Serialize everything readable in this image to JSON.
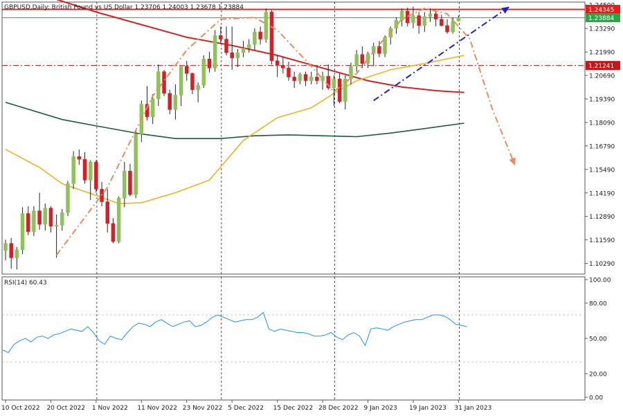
{
  "chart_data": [
    {
      "type": "candlestick",
      "symbol": "GBPUSD",
      "timeframe": "Daily",
      "description": "British Pound vs US Dollar",
      "ohlc_readout": "1.23706 1.24003 1.23678 1.23884",
      "price_axis_ticks": [
        "1.24590",
        "1.23290",
        "1.21990",
        "1.20690",
        "1.19390",
        "1.18090",
        "1.16790",
        "1.15490",
        "1.14190",
        "1.12890",
        "1.11590",
        "1.10290"
      ],
      "horizontal_levels": [
        {
          "price": 1.24345,
          "label": "1.24345",
          "color": "#e81a1a",
          "style": "solid"
        },
        {
          "price": 1.23884,
          "label": "1.23884",
          "color": "#27a844",
          "style": "solid"
        },
        {
          "price": 1.21241,
          "label": "1.21241",
          "color": "#cc1414",
          "style": "dash-dot"
        }
      ],
      "date_labels": [
        {
          "index": 0,
          "label": "10 Oct 2022"
        },
        {
          "index": 8,
          "label": "20 Oct 2022"
        },
        {
          "index": 16,
          "label": "1 Nov 2022"
        },
        {
          "index": 24,
          "label": "11 Nov 2022"
        },
        {
          "index": 32,
          "label": "23 Nov 2022"
        },
        {
          "index": 40,
          "label": "5 Dec 2022"
        },
        {
          "index": 48,
          "label": "15 Dec 2022"
        },
        {
          "index": 56,
          "label": "28 Dec 2022"
        },
        {
          "index": 64,
          "label": "9 Jan 2023"
        },
        {
          "index": 72,
          "label": "19 Jan 2023"
        },
        {
          "index": 80,
          "label": "31 Jan 2023"
        }
      ],
      "vertical_separator_indices": [
        16,
        38,
        58,
        80
      ],
      "colors": {
        "bull": "#8fc35a",
        "bear": "#d61f26",
        "ma_fast": "#f2b21b",
        "ma_mid": "#d62222",
        "ma_slow": "#1d5a3c"
      },
      "candles": [
        [
          1.11,
          1.116,
          1.1045,
          1.114
        ],
        [
          1.114,
          1.117,
          1.1,
          1.106
        ],
        [
          1.106,
          1.112,
          1.0995,
          1.1105
        ],
        [
          1.1105,
          1.134,
          1.108,
          1.1305
        ],
        [
          1.1305,
          1.1345,
          1.1185,
          1.1205
        ],
        [
          1.1205,
          1.1345,
          1.118,
          1.132
        ],
        [
          1.132,
          1.142,
          1.1215,
          1.1245
        ],
        [
          1.1245,
          1.136,
          1.121,
          1.1335
        ],
        [
          1.1335,
          1.1345,
          1.12,
          1.1235
        ],
        [
          1.1235,
          1.13,
          1.106,
          1.124
        ],
        [
          1.124,
          1.133,
          1.121,
          1.131
        ],
        [
          1.131,
          1.1485,
          1.129,
          1.147
        ],
        [
          1.147,
          1.165,
          1.144,
          1.162
        ],
        [
          1.162,
          1.166,
          1.1575,
          1.1605
        ],
        [
          1.1605,
          1.1645,
          1.147,
          1.149
        ],
        [
          1.149,
          1.16,
          1.138,
          1.159
        ],
        [
          1.159,
          1.16,
          1.142,
          1.144
        ],
        [
          1.144,
          1.148,
          1.1345,
          1.137
        ],
        [
          1.137,
          1.144,
          1.12,
          1.125
        ],
        [
          1.125,
          1.128,
          1.114,
          1.115
        ],
        [
          1.115,
          1.14,
          1.114,
          1.139
        ],
        [
          1.139,
          1.159,
          1.134,
          1.154
        ],
        [
          1.154,
          1.158,
          1.14,
          1.141
        ],
        [
          1.141,
          1.177,
          1.139,
          1.1745
        ],
        [
          1.1745,
          1.193,
          1.17,
          1.191
        ],
        [
          1.191,
          1.201,
          1.182,
          1.184
        ],
        [
          1.184,
          1.1965,
          1.18,
          1.194
        ],
        [
          1.194,
          1.213,
          1.19,
          1.209
        ],
        [
          1.209,
          1.21,
          1.1955,
          1.197
        ],
        [
          1.197,
          1.199,
          1.1855,
          1.188
        ],
        [
          1.188,
          1.202,
          1.1825,
          1.196
        ],
        [
          1.196,
          1.212,
          1.19,
          1.212
        ],
        [
          1.212,
          1.215,
          1.204,
          1.208
        ],
        [
          1.208,
          1.2085,
          1.1965,
          1.199
        ],
        [
          1.199,
          1.203,
          1.192,
          1.2015
        ],
        [
          1.2015,
          1.218,
          1.2,
          1.216
        ],
        [
          1.216,
          1.22,
          1.2085,
          1.211
        ],
        [
          1.211,
          1.232,
          1.209,
          1.229
        ],
        [
          1.229,
          1.234,
          1.2245,
          1.227
        ],
        [
          1.227,
          1.234,
          1.218,
          1.2195
        ],
        [
          1.2195,
          1.234,
          1.21,
          1.2165
        ],
        [
          1.2165,
          1.2215,
          1.2115,
          1.2195
        ],
        [
          1.2195,
          1.226,
          1.217,
          1.222
        ],
        [
          1.222,
          1.227,
          1.2195,
          1.224
        ],
        [
          1.224,
          1.233,
          1.221,
          1.231
        ],
        [
          1.231,
          1.234,
          1.224,
          1.227
        ],
        [
          1.227,
          1.244,
          1.225,
          1.242
        ],
        [
          1.242,
          1.243,
          1.213,
          1.215
        ],
        [
          1.215,
          1.218,
          1.206,
          1.2125
        ],
        [
          1.2125,
          1.217,
          1.208,
          1.211
        ],
        [
          1.211,
          1.2145,
          1.204,
          1.206
        ],
        [
          1.206,
          1.209,
          1.2,
          1.204
        ],
        [
          1.204,
          1.2085,
          1.202,
          1.2075
        ],
        [
          1.2075,
          1.209,
          1.201,
          1.204
        ],
        [
          1.204,
          1.209,
          1.202,
          1.206
        ],
        [
          1.206,
          1.212,
          1.202,
          1.204
        ],
        [
          1.204,
          1.209,
          1.199,
          1.2065
        ],
        [
          1.2065,
          1.213,
          1.199,
          1.2
        ],
        [
          1.2,
          1.207,
          1.19,
          1.205
        ],
        [
          1.205,
          1.208,
          1.1915,
          1.1925
        ],
        [
          1.1925,
          1.207,
          1.188,
          1.205
        ],
        [
          1.205,
          1.214,
          1.202,
          1.212
        ],
        [
          1.212,
          1.221,
          1.209,
          1.2185
        ],
        [
          1.2185,
          1.223,
          1.211,
          1.2135
        ],
        [
          1.2135,
          1.22,
          1.211,
          1.219
        ],
        [
          1.219,
          1.225,
          1.212,
          1.223
        ],
        [
          1.223,
          1.226,
          1.217,
          1.219
        ],
        [
          1.219,
          1.229,
          1.217,
          1.228
        ],
        [
          1.228,
          1.234,
          1.224,
          1.233
        ],
        [
          1.233,
          1.239,
          1.23,
          1.2375
        ],
        [
          1.2375,
          1.244,
          1.234,
          1.2425
        ],
        [
          1.2425,
          1.2445,
          1.234,
          1.236
        ],
        [
          1.236,
          1.245,
          1.233,
          1.24
        ],
        [
          1.24,
          1.242,
          1.23,
          1.2345
        ],
        [
          1.2345,
          1.242,
          1.231,
          1.2395
        ],
        [
          1.2395,
          1.244,
          1.2365,
          1.241
        ],
        [
          1.241,
          1.243,
          1.234,
          1.238
        ],
        [
          1.238,
          1.2405,
          1.234,
          1.2345
        ],
        [
          1.2345,
          1.238,
          1.23,
          1.231
        ],
        [
          1.231,
          1.239,
          1.23,
          1.237
        ],
        [
          1.237,
          1.24,
          1.2368,
          1.2388
        ]
      ],
      "moving_averages": [
        {
          "key": "ma_slow",
          "points": [
            [
              0,
              1.192
            ],
            [
              10,
              1.1825
            ],
            [
              16,
              1.179
            ],
            [
              24,
              1.1745
            ],
            [
              30,
              1.172
            ],
            [
              38,
              1.172
            ],
            [
              44,
              1.1735
            ],
            [
              50,
              1.174
            ],
            [
              56,
              1.1735
            ],
            [
              62,
              1.173
            ],
            [
              68,
              1.175
            ],
            [
              74,
              1.1775
            ],
            [
              81,
              1.1805
            ]
          ]
        },
        {
          "key": "ma_mid",
          "points": [
            [
              0,
              1.258
            ],
            [
              8,
              1.25
            ],
            [
              16,
              1.242
            ],
            [
              24,
              1.235
            ],
            [
              32,
              1.228
            ],
            [
              40,
              1.2235
            ],
            [
              48,
              1.218
            ],
            [
              56,
              1.211
            ],
            [
              64,
              1.204
            ],
            [
              70,
              1.2005
            ],
            [
              76,
              1.1985
            ],
            [
              81,
              1.1975
            ]
          ]
        },
        {
          "key": "ma_fast",
          "points": [
            [
              0,
              1.166
            ],
            [
              6,
              1.156
            ],
            [
              10,
              1.147
            ],
            [
              16,
              1.1405
            ],
            [
              20,
              1.136
            ],
            [
              24,
              1.1365
            ],
            [
              30,
              1.142
            ],
            [
              36,
              1.149
            ],
            [
              42,
              1.171
            ],
            [
              48,
              1.1835
            ],
            [
              54,
              1.189
            ],
            [
              58,
              1.197
            ],
            [
              62,
              1.204
            ],
            [
              68,
              1.21
            ],
            [
              74,
              1.2135
            ],
            [
              81,
              1.218
            ]
          ]
        }
      ],
      "annotations": [
        {
          "kind": "arc",
          "color": "#f08a5a",
          "style": "dash-dot",
          "points": [
            [
              9,
              1.1075
            ],
            [
              18,
              1.145
            ],
            [
              26,
              1.1955
            ],
            [
              32,
              1.221
            ],
            [
              38,
              1.238
            ],
            [
              44,
              1.239
            ],
            [
              48,
              1.232
            ],
            [
              54,
              1.212
            ],
            [
              58,
              1.198
            ],
            [
              62,
              1.208
            ],
            [
              66,
              1.224
            ],
            [
              70,
              1.238
            ],
            [
              74,
              1.244
            ],
            [
              78,
              1.241
            ],
            [
              82,
              1.227
            ],
            [
              86,
              1.188
            ],
            [
              90,
              1.157
            ]
          ],
          "arrowhead": true
        },
        {
          "kind": "line",
          "color": "#1a22d6",
          "style": "dash-dot",
          "points": [
            [
              65,
              1.193
            ],
            [
              89,
              1.245
            ]
          ],
          "arrowhead": true
        }
      ]
    },
    {
      "type": "line",
      "indicator": "RSI(14)",
      "title": "RSI(14) 60.43",
      "y_ticks": [
        "100.00",
        "80.00",
        "50.00",
        "20.00",
        "0.00"
      ],
      "levels": [
        70,
        30
      ],
      "values": [
        40,
        38,
        45,
        48,
        50,
        47,
        51,
        52,
        50,
        53,
        54,
        56,
        58,
        57,
        56,
        60,
        55,
        48,
        45,
        52,
        50,
        49,
        55,
        60,
        63,
        62,
        60,
        64,
        66,
        63,
        60,
        62,
        64,
        65,
        60,
        61,
        64,
        68,
        70,
        68,
        66,
        64,
        65,
        66,
        66,
        68,
        72,
        58,
        56,
        58,
        57,
        56,
        55,
        55,
        54,
        52,
        52,
        53,
        55,
        51,
        49,
        53,
        55,
        52,
        44,
        58,
        59,
        58,
        57,
        60,
        62,
        64,
        65,
        66,
        66,
        68,
        70,
        70,
        69,
        66,
        62,
        61,
        60
      ]
    }
  ]
}
